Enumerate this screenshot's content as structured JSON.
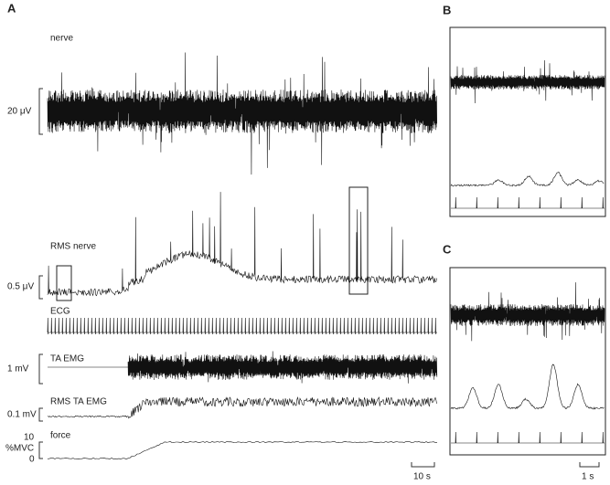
{
  "panels": {
    "a": "A",
    "b": "B",
    "c": "C"
  },
  "traces": {
    "nerve": "nerve",
    "rms_nerve": "RMS nerve",
    "ecg": "ECG",
    "ta_emg": "TA EMG",
    "rms_ta_emg": "RMS TA EMG",
    "force": "force"
  },
  "scales": {
    "nerve": "20 μV",
    "rms_nerve": "0.5 μV",
    "ta_emg": "1 mV",
    "rms_ta_emg": "0.1 mV",
    "force_top": "10",
    "force_unit": "%MVC",
    "force_bottom": "0",
    "time_a": "10 s",
    "time_bc": "1 s"
  }
}
